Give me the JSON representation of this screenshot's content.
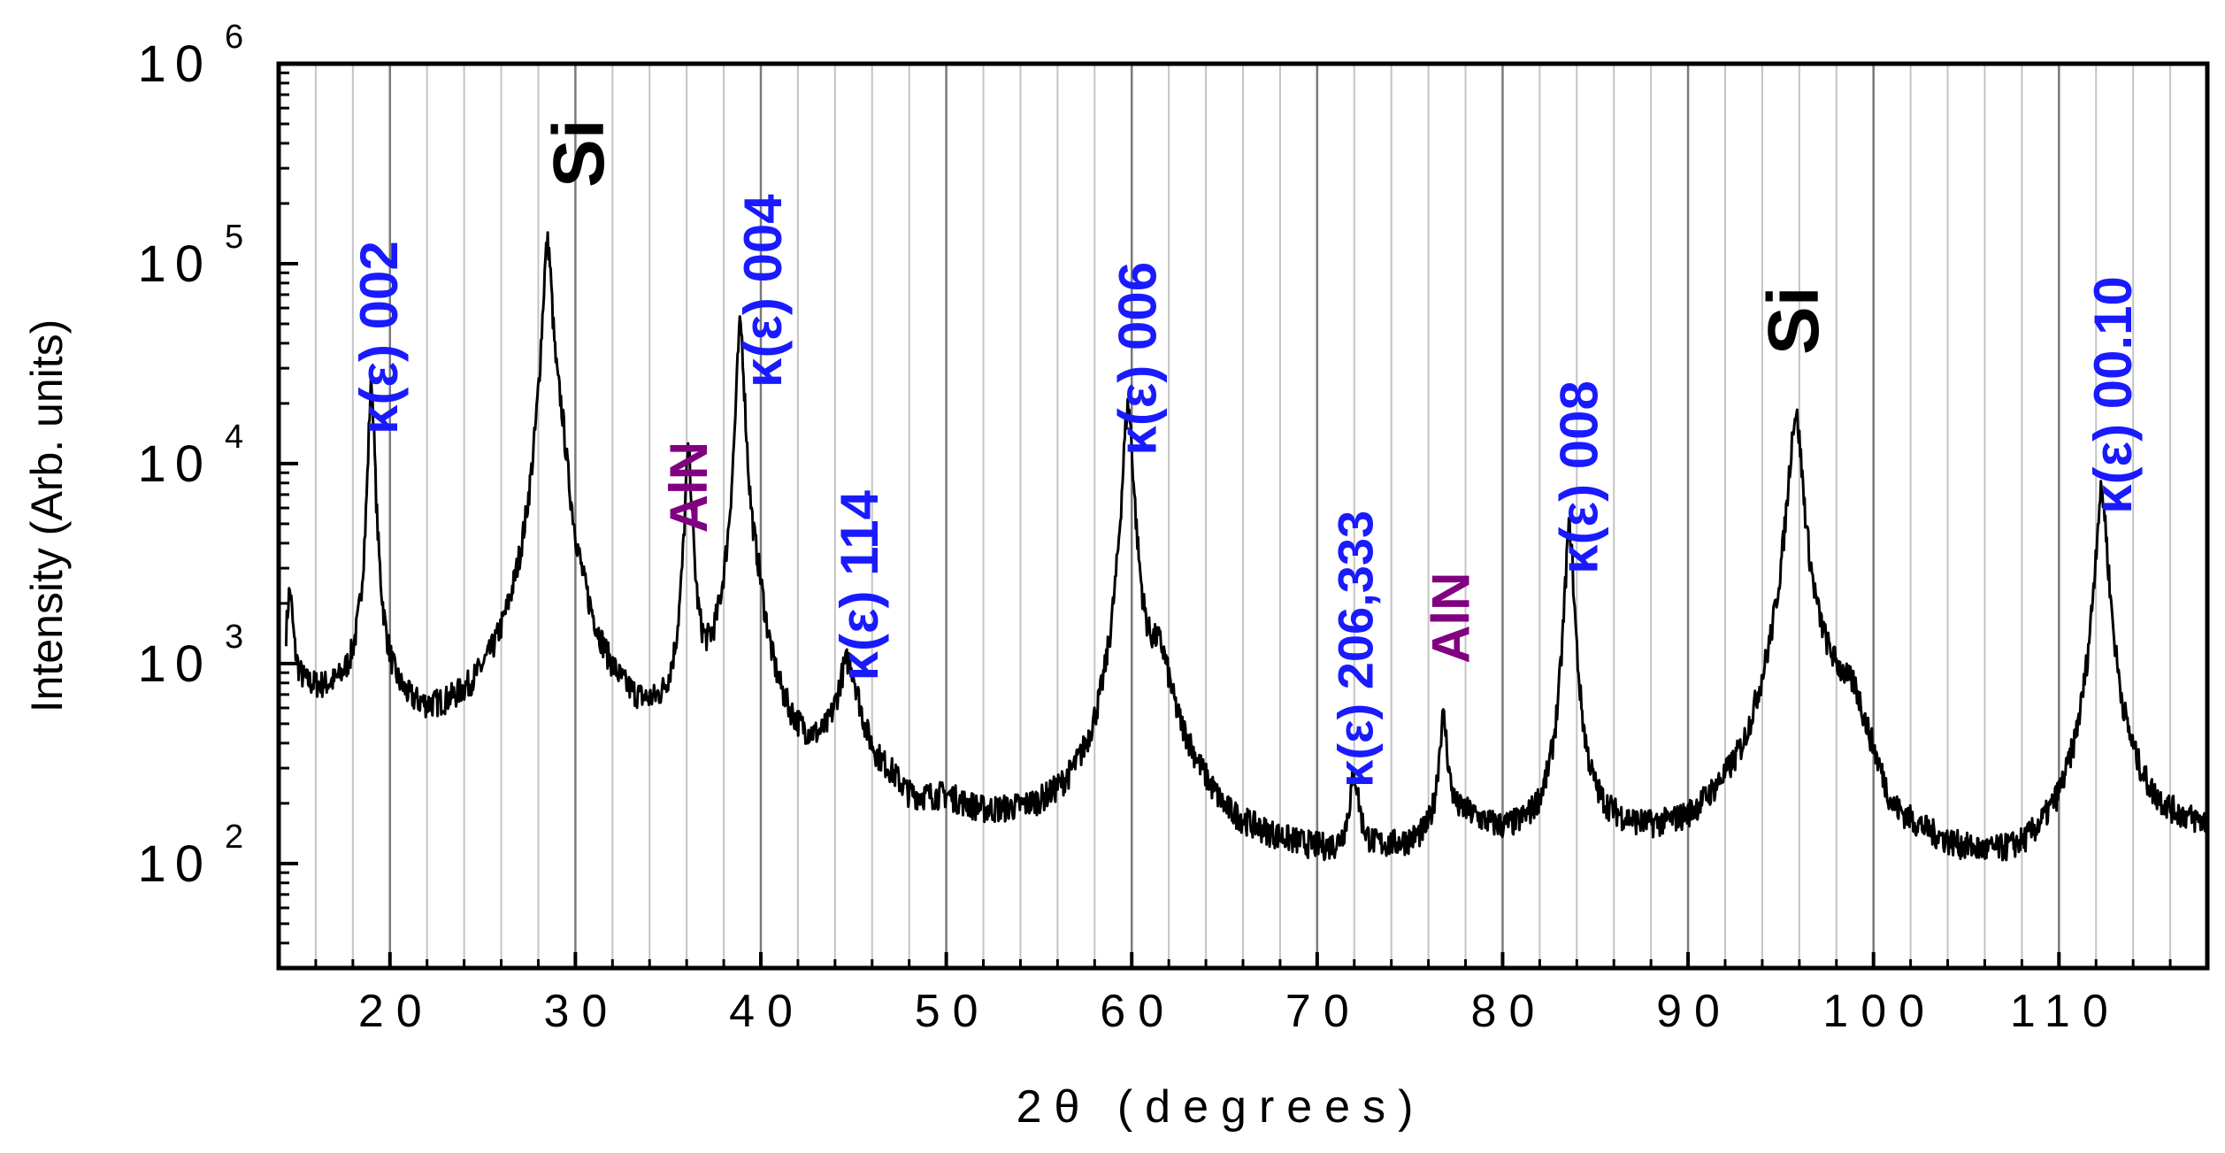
{
  "chart_data": {
    "type": "line",
    "title": "",
    "xlabel": "2θ (degrees)",
    "ylabel": "Intensity (Arb. units)",
    "xlim": [
      14,
      118
    ],
    "ylim": [
      30,
      1000000
    ],
    "yscale": "log",
    "grid": "vertical",
    "x_ticks": [
      20,
      30,
      40,
      50,
      60,
      70,
      80,
      90,
      100,
      110
    ],
    "x_tick_labels": [
      "20",
      "30",
      "40",
      "50",
      "60",
      "70",
      "80",
      "90",
      "100",
      "110"
    ],
    "y_ticks": [
      {
        "value": 100,
        "base": "10",
        "exp": "2"
      },
      {
        "value": 1000,
        "base": "10",
        "exp": "3"
      },
      {
        "value": 10000,
        "base": "10",
        "exp": "4"
      },
      {
        "value": 100000,
        "base": "10",
        "exp": "5"
      },
      {
        "value": 1000000,
        "base": "10",
        "exp": "6"
      }
    ],
    "series": [
      {
        "color": "#000000",
        "background": [
          [
            14.5,
            780
          ],
          [
            15.5,
            680
          ],
          [
            17,
            620
          ],
          [
            19,
            580
          ],
          [
            20.5,
            450
          ],
          [
            22,
            380
          ],
          [
            24,
            350
          ],
          [
            26,
            330
          ],
          [
            27.5,
            340
          ],
          [
            30.5,
            280
          ],
          [
            32,
            245
          ],
          [
            34,
            230
          ],
          [
            35.5,
            220
          ],
          [
            38,
            300
          ],
          [
            41,
            190
          ],
          [
            43,
            185
          ],
          [
            47,
            180
          ],
          [
            48,
            140
          ],
          [
            50,
            160
          ],
          [
            52,
            130
          ],
          [
            55,
            125
          ],
          [
            58,
            130
          ],
          [
            63,
            200
          ],
          [
            65,
            115
          ],
          [
            68,
            100
          ],
          [
            71,
            90
          ],
          [
            74,
            100
          ],
          [
            76,
            110
          ],
          [
            78,
            150
          ],
          [
            80,
            120
          ],
          [
            83,
            110
          ],
          [
            86,
            120
          ],
          [
            88,
            110
          ],
          [
            90,
            110
          ],
          [
            93,
            160
          ],
          [
            95.5,
            700
          ],
          [
            99,
            600
          ],
          [
            101,
            120
          ],
          [
            104,
            90
          ],
          [
            106,
            80
          ],
          [
            108,
            80
          ],
          [
            110,
            100
          ],
          [
            113,
            190
          ],
          [
            115,
            140
          ],
          [
            118,
            135
          ]
        ],
        "peaks": [
          {
            "x": 14.6,
            "height": 1450,
            "width": 0.25
          },
          {
            "x": 19.0,
            "height": 25000,
            "width": 0.22
          },
          {
            "x": 28.5,
            "height": 125000,
            "width": 0.35
          },
          {
            "x": 29.2,
            "height": 8000,
            "width": 0.5
          },
          {
            "x": 36.1,
            "height": 10500,
            "width": 0.28
          },
          {
            "x": 38.9,
            "height": 48000,
            "width": 0.3
          },
          {
            "x": 39.8,
            "height": 900,
            "width": 0.6
          },
          {
            "x": 44.7,
            "height": 750,
            "width": 0.9
          },
          {
            "x": 59.8,
            "height": 19000,
            "width": 0.38
          },
          {
            "x": 61.5,
            "height": 700,
            "width": 0.9
          },
          {
            "x": 72.0,
            "height": 160,
            "width": 0.4
          },
          {
            "x": 76.8,
            "height": 390,
            "width": 0.35
          },
          {
            "x": 83.6,
            "height": 4600,
            "width": 0.33
          },
          {
            "x": 95.8,
            "height": 17000,
            "width": 0.5
          },
          {
            "x": 112.3,
            "height": 7000,
            "width": 0.45
          }
        ]
      }
    ],
    "annotations": [
      {
        "text": "κ(ε) 002",
        "x": 20.4,
        "y": 14000,
        "color": "#1a1aff",
        "size": 60
      },
      {
        "text": "Si",
        "x": 31.5,
        "y": 240000,
        "color": "#000000",
        "size": 82
      },
      {
        "text": "AlN",
        "x": 37.1,
        "y": 4500,
        "color": "#800080",
        "size": 60
      },
      {
        "text": "κ(ε) 004",
        "x": 41.1,
        "y": 24000,
        "color": "#1a1aff",
        "size": 60
      },
      {
        "text": "κ(ε) 114",
        "x": 46.3,
        "y": 820,
        "color": "#1a1aff",
        "size": 60
      },
      {
        "text": "κ(ε) 006",
        "x": 61.3,
        "y": 11000,
        "color": "#1a1aff",
        "size": 60
      },
      {
        "text": "κ(ε) 206,333",
        "x": 73.0,
        "y": 240,
        "color": "#1a1aff",
        "size": 56
      },
      {
        "text": "AlN",
        "x": 78.2,
        "y": 1000,
        "color": "#800080",
        "size": 60
      },
      {
        "text": "κ(ε) 008",
        "x": 85.1,
        "y": 2800,
        "color": "#1a1aff",
        "size": 60
      },
      {
        "text": "Si",
        "x": 97.0,
        "y": 35000,
        "color": "#000000",
        "size": 82
      },
      {
        "text": "κ(ε) 00.10",
        "x": 113.9,
        "y": 5600,
        "color": "#1a1aff",
        "size": 60
      }
    ]
  }
}
